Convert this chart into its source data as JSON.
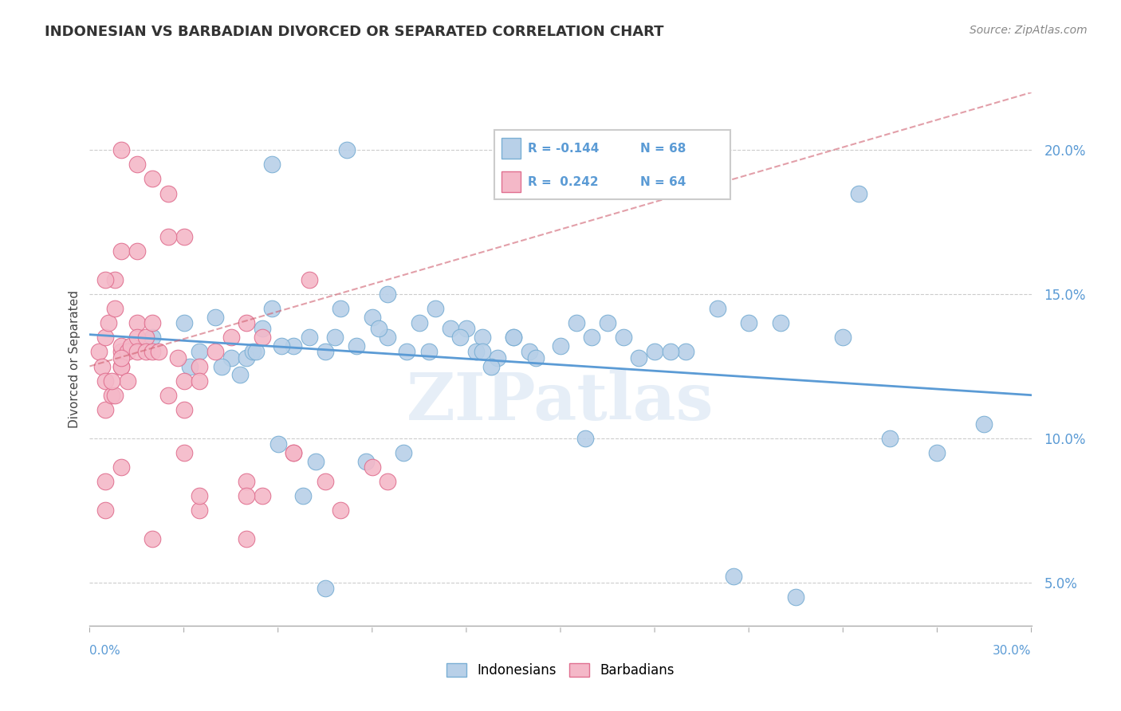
{
  "title": "INDONESIAN VS BARBADIAN DIVORCED OR SEPARATED CORRELATION CHART",
  "source": "Source: ZipAtlas.com",
  "ylabel": "Divorced or Separated",
  "xlim": [
    0.0,
    30.0
  ],
  "ylim": [
    3.5,
    22.0
  ],
  "yticks": [
    5.0,
    10.0,
    15.0,
    20.0
  ],
  "ytick_labels": [
    "5.0%",
    "10.0%",
    "15.0%",
    "20.0%"
  ],
  "legend_labels": [
    "Indonesians",
    "Barbadians"
  ],
  "r_blue": -0.144,
  "n_blue": 68,
  "r_pink": 0.242,
  "n_pink": 64,
  "color_blue": "#b8d0e8",
  "color_pink": "#f4b8c8",
  "edge_blue": "#7aafd4",
  "edge_pink": "#e07090",
  "trendline_blue": "#5b9bd5",
  "trendline_pink": "#d06070",
  "watermark_color": "#dce8f4",
  "watermark": "ZIPatlas",
  "blue_points_x": [
    2.0,
    3.0,
    3.5,
    4.0,
    4.5,
    4.8,
    5.0,
    5.2,
    5.5,
    5.8,
    6.0,
    6.5,
    7.0,
    7.5,
    8.0,
    8.5,
    9.0,
    9.5,
    10.0,
    10.5,
    11.0,
    11.5,
    12.0,
    12.5,
    13.0,
    13.5,
    14.0,
    15.0,
    15.5,
    16.0,
    17.0,
    18.0,
    19.0,
    20.0,
    21.0,
    22.0,
    24.5,
    25.5,
    27.0,
    28.5,
    3.2,
    4.2,
    5.3,
    6.1,
    7.2,
    7.8,
    8.8,
    9.2,
    10.1,
    10.8,
    11.8,
    12.3,
    12.8,
    13.5,
    14.2,
    15.8,
    16.5,
    18.5,
    20.5,
    22.5,
    24.0,
    5.8,
    8.2,
    9.5,
    12.5,
    17.5,
    7.5,
    6.8
  ],
  "blue_points_y": [
    13.5,
    14.0,
    13.0,
    14.2,
    12.8,
    12.2,
    12.8,
    13.0,
    13.8,
    14.5,
    9.8,
    13.2,
    13.5,
    13.0,
    14.5,
    13.2,
    14.2,
    13.5,
    9.5,
    14.0,
    14.5,
    13.8,
    13.8,
    13.5,
    12.8,
    13.5,
    13.0,
    13.2,
    14.0,
    13.5,
    13.5,
    13.0,
    13.0,
    14.5,
    14.0,
    14.0,
    18.5,
    10.0,
    9.5,
    10.5,
    12.5,
    12.5,
    13.0,
    13.2,
    9.2,
    13.5,
    9.2,
    13.8,
    13.0,
    13.0,
    13.5,
    13.0,
    12.5,
    13.5,
    12.8,
    10.0,
    14.0,
    13.0,
    5.2,
    4.5,
    13.5,
    19.5,
    20.0,
    15.0,
    13.0,
    12.8,
    4.8,
    8.0
  ],
  "pink_points_x": [
    0.3,
    0.4,
    0.5,
    0.5,
    0.5,
    0.5,
    0.5,
    0.6,
    0.7,
    0.8,
    0.8,
    0.8,
    1.0,
    1.0,
    1.0,
    1.0,
    1.0,
    1.0,
    1.2,
    1.2,
    1.3,
    1.5,
    1.5,
    1.5,
    1.8,
    1.8,
    2.0,
    2.0,
    2.2,
    2.5,
    2.5,
    2.8,
    3.0,
    3.0,
    3.5,
    3.5,
    3.5,
    4.0,
    4.5,
    5.0,
    5.0,
    5.5,
    6.5,
    7.0,
    7.5,
    8.0,
    9.0,
    9.5,
    1.0,
    1.5,
    2.5,
    3.0,
    0.5,
    0.7,
    1.0,
    1.5,
    2.0,
    5.5,
    3.0,
    5.0,
    3.5,
    6.5,
    2.0,
    5.0
  ],
  "pink_points_y": [
    13.0,
    12.5,
    13.5,
    12.0,
    11.0,
    8.5,
    7.5,
    14.0,
    11.5,
    15.5,
    14.5,
    11.5,
    13.0,
    16.5,
    12.5,
    9.0,
    12.5,
    13.2,
    13.0,
    12.0,
    13.2,
    14.0,
    13.5,
    13.0,
    13.5,
    13.0,
    19.0,
    13.0,
    13.0,
    18.5,
    11.5,
    12.8,
    17.0,
    12.0,
    12.5,
    12.0,
    7.5,
    13.0,
    13.5,
    14.0,
    8.5,
    13.5,
    9.5,
    15.5,
    8.5,
    7.5,
    9.0,
    8.5,
    20.0,
    19.5,
    17.0,
    11.0,
    15.5,
    12.0,
    12.8,
    16.5,
    14.0,
    8.0,
    9.5,
    8.0,
    8.0,
    9.5,
    6.5,
    6.5
  ],
  "blue_trend_x0": 0.0,
  "blue_trend_y0": 13.6,
  "blue_trend_x1": 30.0,
  "blue_trend_y1": 11.5,
  "pink_trend_x0": 0.0,
  "pink_trend_y0": 12.5,
  "pink_trend_x1": 30.0,
  "pink_trend_y1": 22.0
}
